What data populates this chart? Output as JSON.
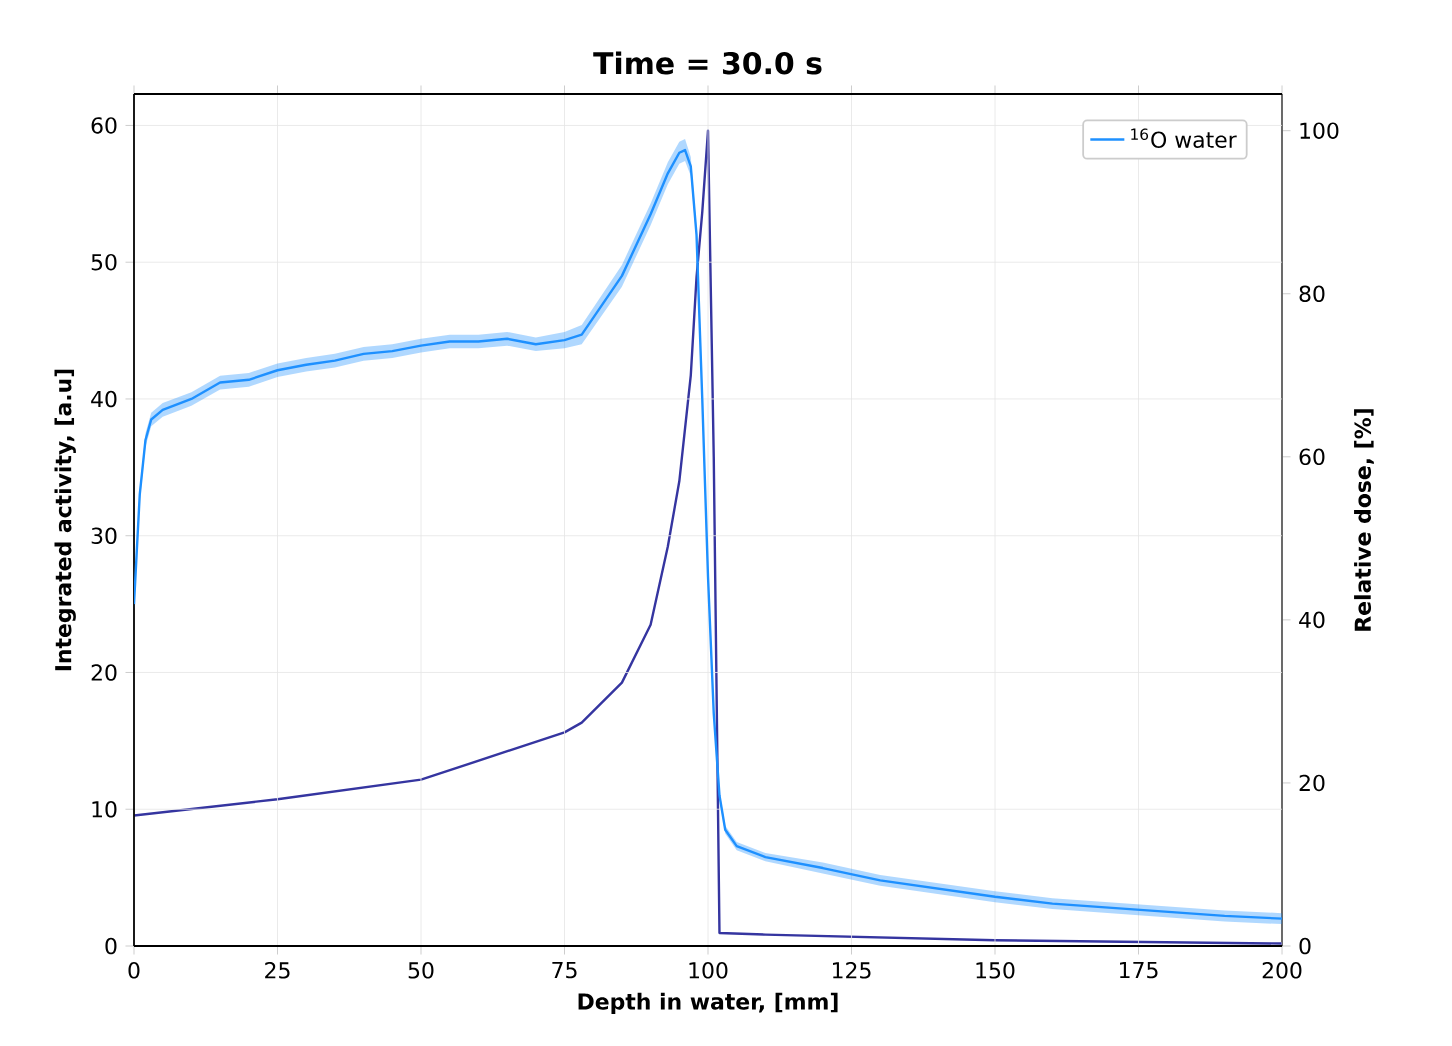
{
  "chart_data": {
    "type": "line",
    "title": "Time = 30.0 s",
    "xlabel": "Depth in water, [mm]",
    "ylabel": "Integrated activity, [a.u]",
    "y2label": "Relative dose, [%]",
    "xlim": [
      0,
      200
    ],
    "xticks": [
      0,
      25,
      50,
      75,
      100,
      125,
      150,
      175,
      200
    ],
    "ylim": [
      0,
      62.3
    ],
    "yticks": [
      0,
      10,
      20,
      30,
      40,
      50,
      60
    ],
    "y2lim": [
      0,
      104.5
    ],
    "y2ticks": [
      0,
      20,
      40,
      60,
      80,
      100
    ],
    "grid": true,
    "legend": "top right",
    "marker": "none",
    "line_style": "solid",
    "series": [
      {
        "name": "$^{16}$O water",
        "color": "#1e90ff",
        "x": [
          0,
          1,
          2,
          3,
          5,
          10,
          15,
          20,
          25,
          30,
          35,
          40,
          45,
          50,
          55,
          60,
          65,
          70,
          75,
          78,
          85,
          90,
          93,
          95,
          96,
          97,
          98,
          99,
          100,
          101,
          102,
          103,
          105,
          110,
          120,
          130,
          150,
          160,
          190,
          200
        ],
        "values": [
          25,
          33,
          37,
          38.5,
          39.2,
          40,
          41.2,
          41.4,
          42.1,
          42.5,
          42.8,
          43.3,
          43.5,
          43.9,
          44.2,
          44.2,
          44.4,
          44,
          44.3,
          44.7,
          49,
          53.5,
          56.5,
          58,
          58.2,
          57,
          52,
          40,
          27,
          17,
          11,
          8.5,
          7.3,
          6.5,
          5.7,
          4.8,
          3.6,
          3.1,
          2.2,
          2
        ],
        "lower": [
          24.5,
          32.5,
          36.5,
          38,
          38.7,
          39.5,
          40.7,
          40.9,
          41.6,
          42,
          42.3,
          42.8,
          43,
          43.4,
          43.7,
          43.7,
          43.9,
          43.5,
          43.7,
          44,
          48.2,
          52.7,
          55.7,
          57.2,
          57.4,
          56.3,
          51.5,
          39.5,
          26.5,
          16.6,
          10.7,
          8.2,
          7,
          6.2,
          5.3,
          4.4,
          3.2,
          2.7,
          1.8,
          1.6
        ],
        "upper": [
          25.5,
          33.5,
          37.5,
          39,
          39.7,
          40.5,
          41.7,
          41.9,
          42.6,
          43,
          43.3,
          43.8,
          44,
          44.4,
          44.7,
          44.7,
          44.9,
          44.5,
          44.9,
          45.4,
          49.8,
          54.3,
          57.3,
          58.8,
          59,
          57.7,
          52.5,
          40.5,
          27.5,
          17.4,
          11.3,
          8.8,
          7.6,
          6.8,
          6.1,
          5.2,
          4,
          3.5,
          2.6,
          2.4
        ]
      },
      {
        "color": "#3535a0",
        "axis": "y2",
        "x": [
          0,
          25,
          50,
          75,
          78,
          85,
          90,
          93,
          95,
          97,
          98,
          99,
          100,
          101,
          102,
          110,
          150,
          200
        ],
        "values": [
          16,
          18,
          20.4,
          26.2,
          27.4,
          32.3,
          39.4,
          49,
          57,
          70,
          82,
          90,
          100,
          60,
          1.6,
          1.4,
          0.7,
          0.3
        ]
      }
    ]
  }
}
